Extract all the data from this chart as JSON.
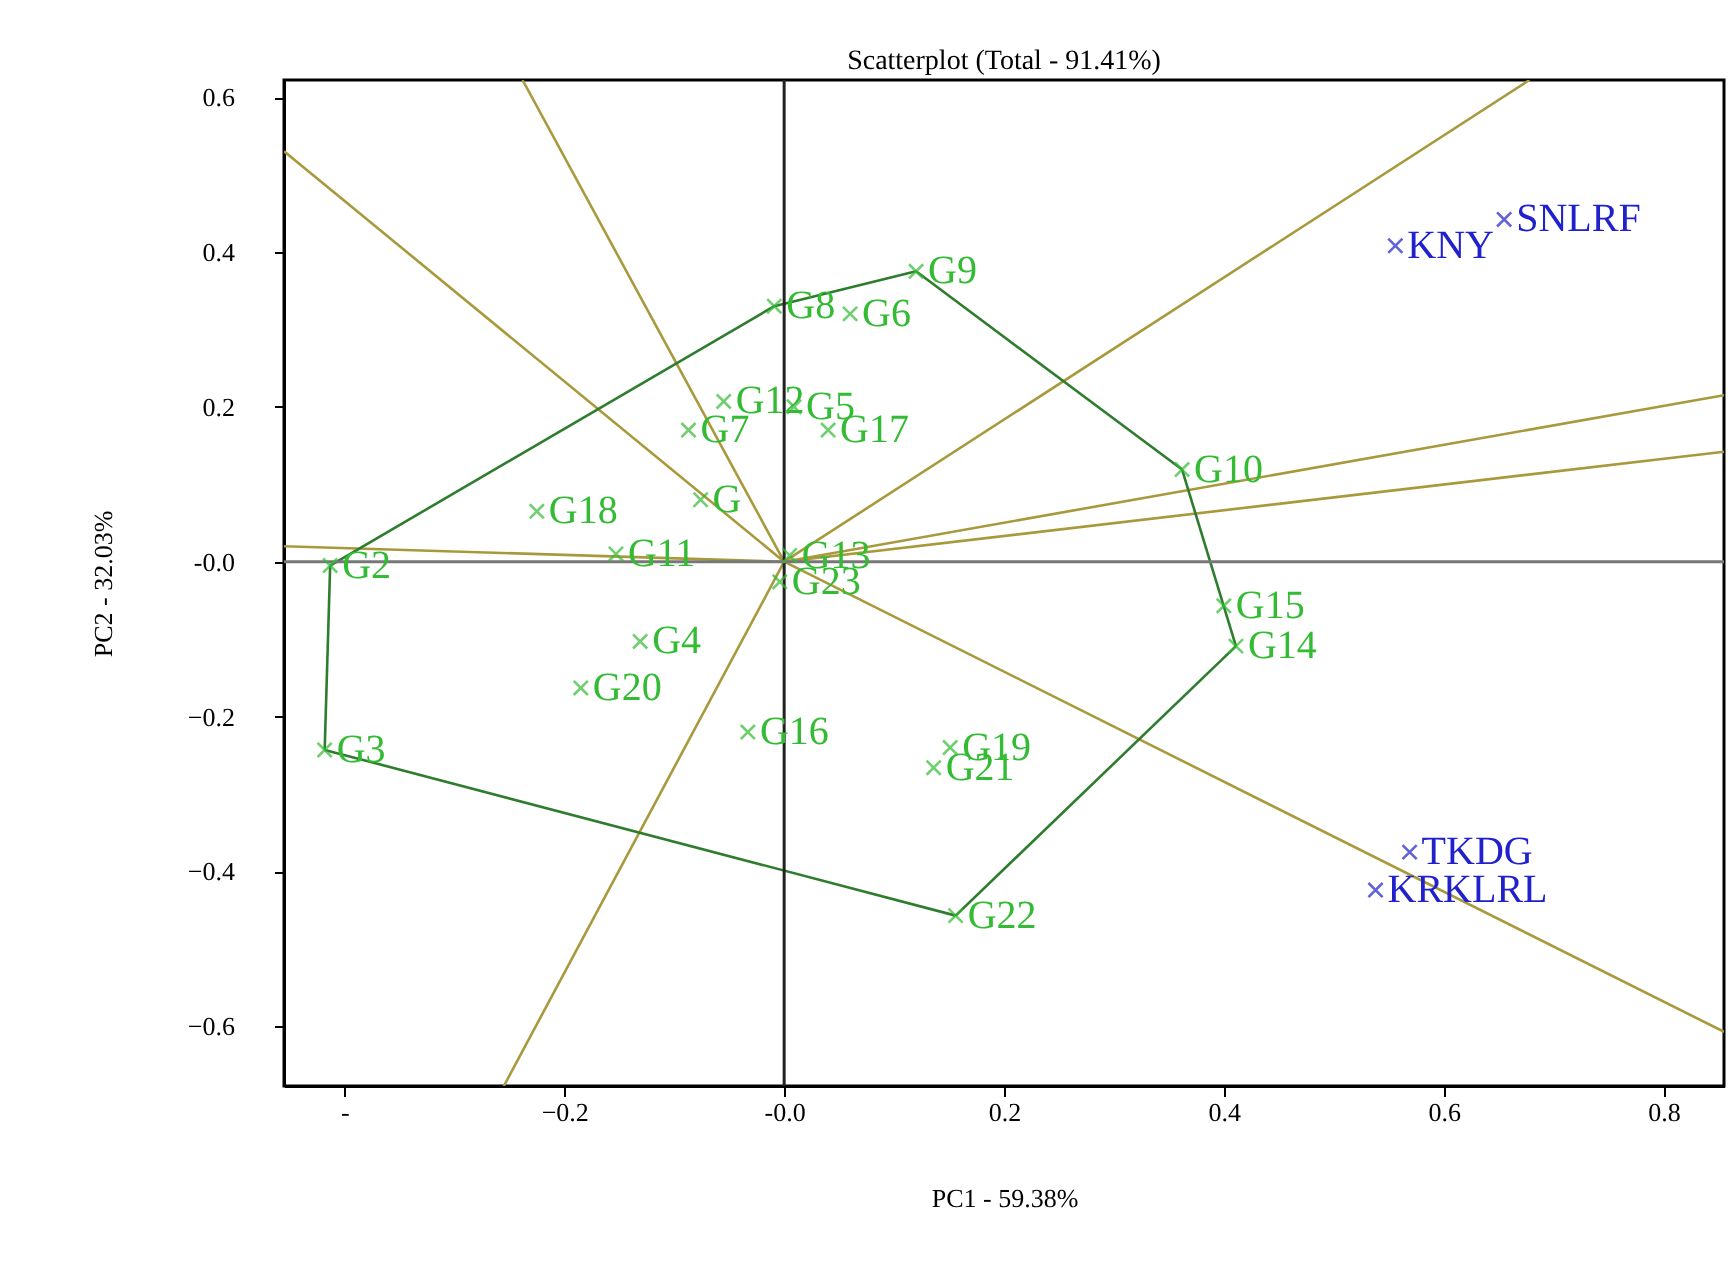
{
  "chart_data": {
    "type": "scatter",
    "title": "Scatterplot (Total - 91.41%)",
    "xlabel": "PC1 - 59.38%",
    "ylabel": "PC2 - 32.03%",
    "xlim": [
      -0.455,
      0.855
    ],
    "ylim": [
      -0.677,
      0.622
    ],
    "xticks": [
      {
        "value": -0.4,
        "label": "-"
      },
      -0.2,
      {
        "value": 0,
        "label": "-0.0"
      },
      0.2,
      0.4,
      0.6,
      0.8
    ],
    "yticks": [
      -0.6,
      -0.4,
      -0.2,
      {
        "value": 0,
        "label": "-0.0"
      },
      0.2,
      0.4,
      0.6
    ],
    "grid": false,
    "legend": false,
    "ref_lines": [
      {
        "axis": "x",
        "value": 0,
        "color": "#222222"
      },
      {
        "axis": "y",
        "value": 0,
        "color": "#777777"
      }
    ],
    "series": [
      {
        "type": "line",
        "color": "#a89a3c",
        "x": [
          0,
          -0.455
        ],
        "values": [
          0,
          0.53
        ]
      },
      {
        "type": "line",
        "color": "#a89a3c",
        "x": [
          0,
          -0.238
        ],
        "values": [
          0,
          0.622
        ]
      },
      {
        "type": "line",
        "color": "#a89a3c",
        "x": [
          0,
          0.678
        ],
        "values": [
          0,
          0.622
        ]
      },
      {
        "type": "line",
        "color": "#a89a3c",
        "x": [
          0,
          0.855
        ],
        "values": [
          0,
          0.215
        ]
      },
      {
        "type": "line",
        "color": "#a89a3c",
        "x": [
          0,
          0.855
        ],
        "values": [
          0,
          0.142
        ]
      },
      {
        "type": "line",
        "color": "#a89a3c",
        "x": [
          0,
          0.855
        ],
        "values": [
          0,
          -0.607
        ]
      },
      {
        "type": "line",
        "color": "#a89a3c",
        "x": [
          0,
          -0.255
        ],
        "values": [
          0,
          -0.677
        ]
      },
      {
        "type": "line",
        "color": "#a89a3c",
        "x": [
          0,
          -0.455
        ],
        "values": [
          0,
          0.02
        ]
      },
      {
        "type": "line",
        "color": "#2e7d2e",
        "x": [
          -0.009,
          0.12
        ],
        "values": [
          0.33,
          0.375
        ]
      },
      {
        "type": "line",
        "color": "#2e7d2e",
        "x": [
          0.12,
          0.362
        ],
        "values": [
          0.375,
          0.119
        ]
      },
      {
        "type": "line",
        "color": "#2e7d2e",
        "x": [
          0.362,
          0.411
        ],
        "values": [
          0.119,
          -0.109
        ]
      },
      {
        "type": "line",
        "color": "#2e7d2e",
        "x": [
          0.411,
          0.156
        ],
        "values": [
          -0.109,
          -0.457
        ]
      },
      {
        "type": "line",
        "color": "#2e7d2e",
        "x": [
          0.156,
          -0.418
        ],
        "values": [
          -0.457,
          -0.243
        ]
      },
      {
        "type": "line",
        "color": "#2e7d2e",
        "x": [
          -0.418,
          -0.413
        ],
        "values": [
          -0.243,
          -0.005
        ]
      },
      {
        "type": "line",
        "color": "#2e7d2e",
        "x": [
          -0.413,
          -0.009
        ],
        "values": [
          -0.005,
          0.33
        ]
      },
      {
        "type": "scatter",
        "marker": "cross",
        "color": "#33bb33",
        "x": [
          -0.413,
          -0.418,
          -0.225,
          -0.153,
          -0.076,
          -0.087,
          -0.055,
          0.009,
          0.04,
          -0.009,
          0.06,
          0.12,
          0.362,
          0.4,
          0.411,
          0.156,
          0.151,
          0.136,
          -0.033,
          -0.131,
          -0.185,
          0.005,
          -0.004
        ],
        "values": [
          -0.005,
          -0.243,
          0.065,
          0.01,
          0.08,
          0.17,
          0.207,
          0.2,
          0.17,
          0.33,
          0.32,
          0.375,
          0.119,
          -0.057,
          -0.109,
          -0.457,
          -0.24,
          -0.266,
          -0.22,
          -0.103,
          -0.163,
          0.008,
          -0.026
        ]
      },
      {
        "type": "scatter",
        "marker": "cross",
        "color": "#2020cc",
        "x": [
          0.556,
          0.655,
          0.569,
          0.538
        ],
        "values": [
          0.408,
          0.442,
          -0.375,
          -0.424
        ]
      }
    ],
    "annotations": [
      {
        "text": "G2",
        "x": -0.413,
        "y": -0.005
      },
      {
        "text": "G3",
        "x": -0.418,
        "y": -0.243
      },
      {
        "text": "G18",
        "x": -0.225,
        "y": 0.065
      },
      {
        "text": "G11",
        "x": -0.153,
        "y": 0.01
      },
      {
        "text": "G",
        "x": -0.076,
        "y": 0.08
      },
      {
        "text": "G7",
        "x": -0.087,
        "y": 0.17
      },
      {
        "text": "G12",
        "x": -0.055,
        "y": 0.207
      },
      {
        "text": "G5",
        "x": 0.009,
        "y": 0.2
      },
      {
        "text": "G17",
        "x": 0.04,
        "y": 0.17
      },
      {
        "text": "G8",
        "x": -0.009,
        "y": 0.33
      },
      {
        "text": "G6",
        "x": 0.06,
        "y": 0.32
      },
      {
        "text": "G9",
        "x": 0.12,
        "y": 0.375
      },
      {
        "text": "G10",
        "x": 0.362,
        "y": 0.119
      },
      {
        "text": "G15",
        "x": 0.4,
        "y": -0.057
      },
      {
        "text": "G14",
        "x": 0.411,
        "y": -0.109
      },
      {
        "text": "G22",
        "x": 0.156,
        "y": -0.457
      },
      {
        "text": "G19",
        "x": 0.151,
        "y": -0.24
      },
      {
        "text": "G21",
        "x": 0.136,
        "y": -0.266
      },
      {
        "text": "G16",
        "x": -0.033,
        "y": -0.22
      },
      {
        "text": "G4",
        "x": -0.131,
        "y": -0.103
      },
      {
        "text": "G20",
        "x": -0.185,
        "y": -0.163
      },
      {
        "text": "G13",
        "x": 0.005,
        "y": 0.008
      },
      {
        "text": "G23",
        "x": -0.004,
        "y": -0.026
      },
      {
        "text": "KNY",
        "x": 0.556,
        "y": 0.408
      },
      {
        "text": "SNLRF",
        "x": 0.655,
        "y": 0.442
      },
      {
        "text": "TKDG",
        "x": 0.569,
        "y": -0.375
      },
      {
        "text": "KRKLRL",
        "x": 0.538,
        "y": -0.424
      }
    ]
  }
}
